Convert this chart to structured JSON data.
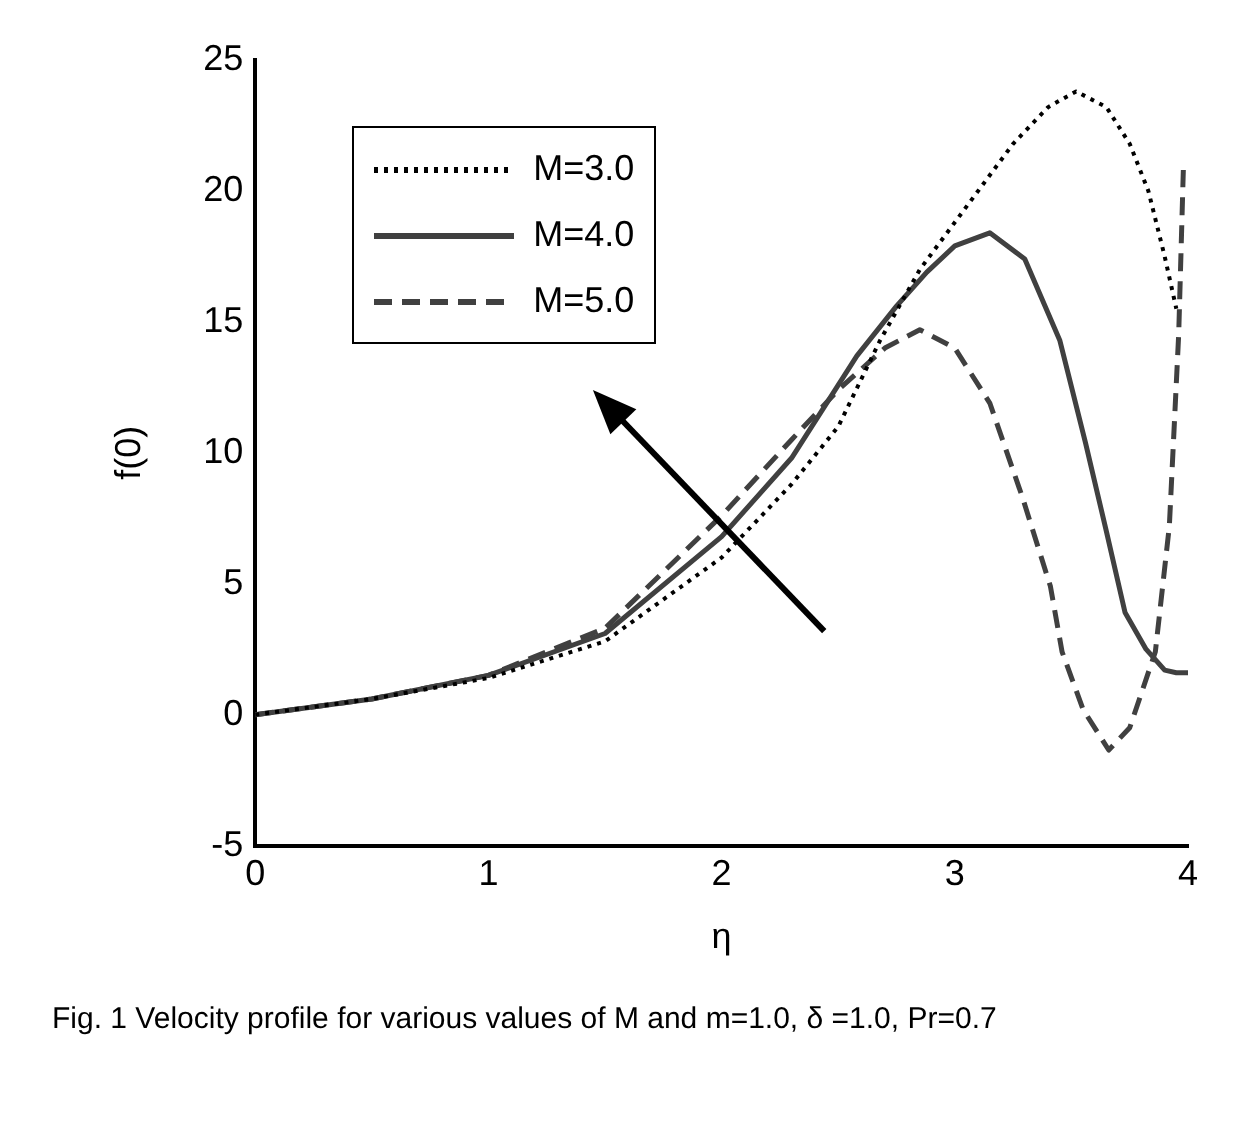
{
  "chart_data": {
    "type": "line",
    "xlabel": "η",
    "ylabel": "f(0)",
    "xlim": [
      0,
      4
    ],
    "xticks": [
      0,
      1,
      2,
      3,
      4
    ],
    "ylim": [
      -5,
      25
    ],
    "yticks": [
      -5,
      0,
      5,
      10,
      15,
      20,
      25
    ],
    "grid": false,
    "legend": "top left",
    "marker": "none",
    "annotations": [
      "Fig. 1 Velocity profile for various values of M and m=1.0, δ =1.0, Pr=0.7"
    ],
    "series": [
      {
        "name": "M=3.0",
        "color": "#000000",
        "line_style": "dotted",
        "x": [
          0,
          0.5,
          1,
          1.5,
          2,
          2.3,
          2.5,
          2.68,
          2.85,
          3.05,
          3.25,
          3.4,
          3.52,
          3.65,
          3.75,
          3.83,
          3.9,
          3.95
        ],
        "values": [
          0,
          0.6,
          1.4,
          2.8,
          6.0,
          8.8,
          11.0,
          14.3,
          17.0,
          19.4,
          21.8,
          23.2,
          23.8,
          23.2,
          21.8,
          20.0,
          17.5,
          15.5
        ]
      },
      {
        "name": "M=4.0",
        "color": "#404040",
        "line_style": "solid",
        "x": [
          0,
          0.5,
          1,
          1.5,
          2,
          2.3,
          2.58,
          2.75,
          2.88,
          3.0,
          3.15,
          3.3,
          3.45,
          3.56,
          3.65,
          3.73,
          3.82,
          3.9,
          3.95,
          4.0
        ],
        "values": [
          0,
          0.6,
          1.5,
          3.1,
          6.8,
          9.8,
          13.7,
          15.6,
          16.9,
          17.9,
          18.4,
          17.4,
          14.3,
          10.4,
          7.0,
          3.9,
          2.5,
          1.7,
          1.6,
          1.6
        ]
      },
      {
        "name": "M=5.0",
        "color": "#404040",
        "line_style": "dashed",
        "x": [
          0,
          0.5,
          1,
          1.5,
          2,
          2.3,
          2.5,
          2.7,
          2.85,
          3.0,
          3.15,
          3.29,
          3.41,
          3.46,
          3.55,
          3.66,
          3.75,
          3.86,
          3.92,
          3.96,
          3.98
        ],
        "values": [
          0,
          0.6,
          1.5,
          3.3,
          7.6,
          10.5,
          12.4,
          14.0,
          14.7,
          14.0,
          11.9,
          8.3,
          4.9,
          2.4,
          0.2,
          -1.35,
          -0.5,
          2.4,
          7.2,
          14.5,
          20.8
        ]
      }
    ]
  }
}
